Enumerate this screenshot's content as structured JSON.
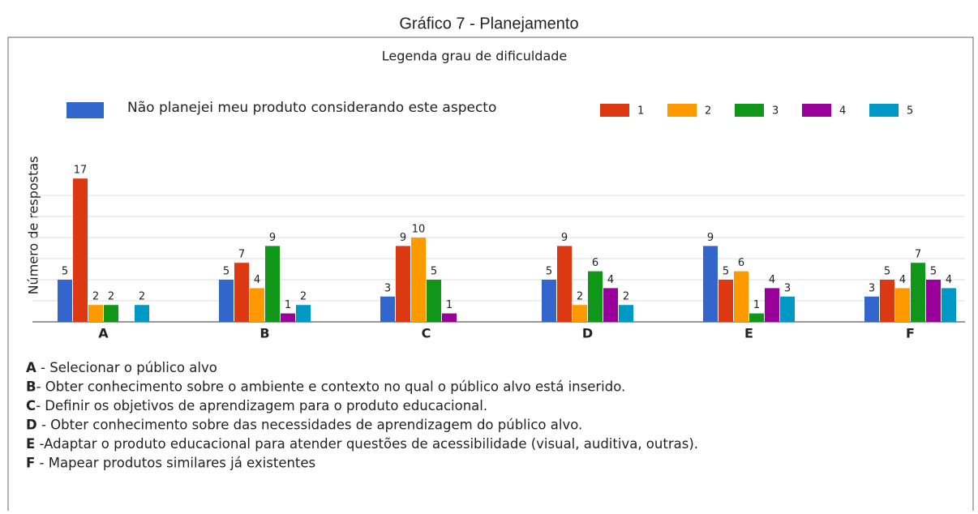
{
  "chart_data": {
    "type": "bar",
    "title": "Gráfico 7 - Planejamento",
    "legend_title": "Legenda grau de dificuldade",
    "ylabel": "Número de respostas",
    "categories": [
      "A",
      "B",
      "C",
      "D",
      "E",
      "F"
    ],
    "series": [
      {
        "name": "Não planejei meu produto considerando este aspecto",
        "color": "#3366cc",
        "values": [
          5,
          5,
          3,
          5,
          9,
          3
        ]
      },
      {
        "name": "1",
        "color": "#dc3912",
        "values": [
          17,
          7,
          9,
          9,
          5,
          5
        ]
      },
      {
        "name": "2",
        "color": "#ff9900",
        "values": [
          2,
          4,
          10,
          2,
          6,
          4
        ]
      },
      {
        "name": "3",
        "color": "#109618",
        "values": [
          2,
          9,
          5,
          6,
          1,
          7
        ]
      },
      {
        "name": "4",
        "color": "#990099",
        "values": [
          null,
          1,
          1,
          4,
          4,
          5
        ]
      },
      {
        "name": "5",
        "color": "#0099c6",
        "values": [
          2,
          2,
          null,
          2,
          3,
          4
        ]
      }
    ],
    "ylim": [
      0,
      17.5
    ],
    "yticks": [
      0,
      2.5,
      5,
      7.5,
      10,
      12.5,
      15
    ],
    "grid": true,
    "notes": [
      {
        "label": "A",
        "text": " - Selecionar o público alvo"
      },
      {
        "label": "B",
        "text": "- Obter conhecimento sobre o ambiente e contexto no qual o público alvo está inserido."
      },
      {
        "label": "C",
        "text": "- Definir os objetivos de aprendizagem para o produto educacional."
      },
      {
        "label": "D",
        "text": " - Obter conhecimento sobre das necessidades de aprendizagem do público alvo."
      },
      {
        "label": "E",
        "text": " -Adaptar o produto educacional para atender questões de acessibilidade (visual, auditiva, outras)."
      },
      {
        "label": "F",
        "text": " - Mapear produtos similares já existentes"
      }
    ]
  }
}
